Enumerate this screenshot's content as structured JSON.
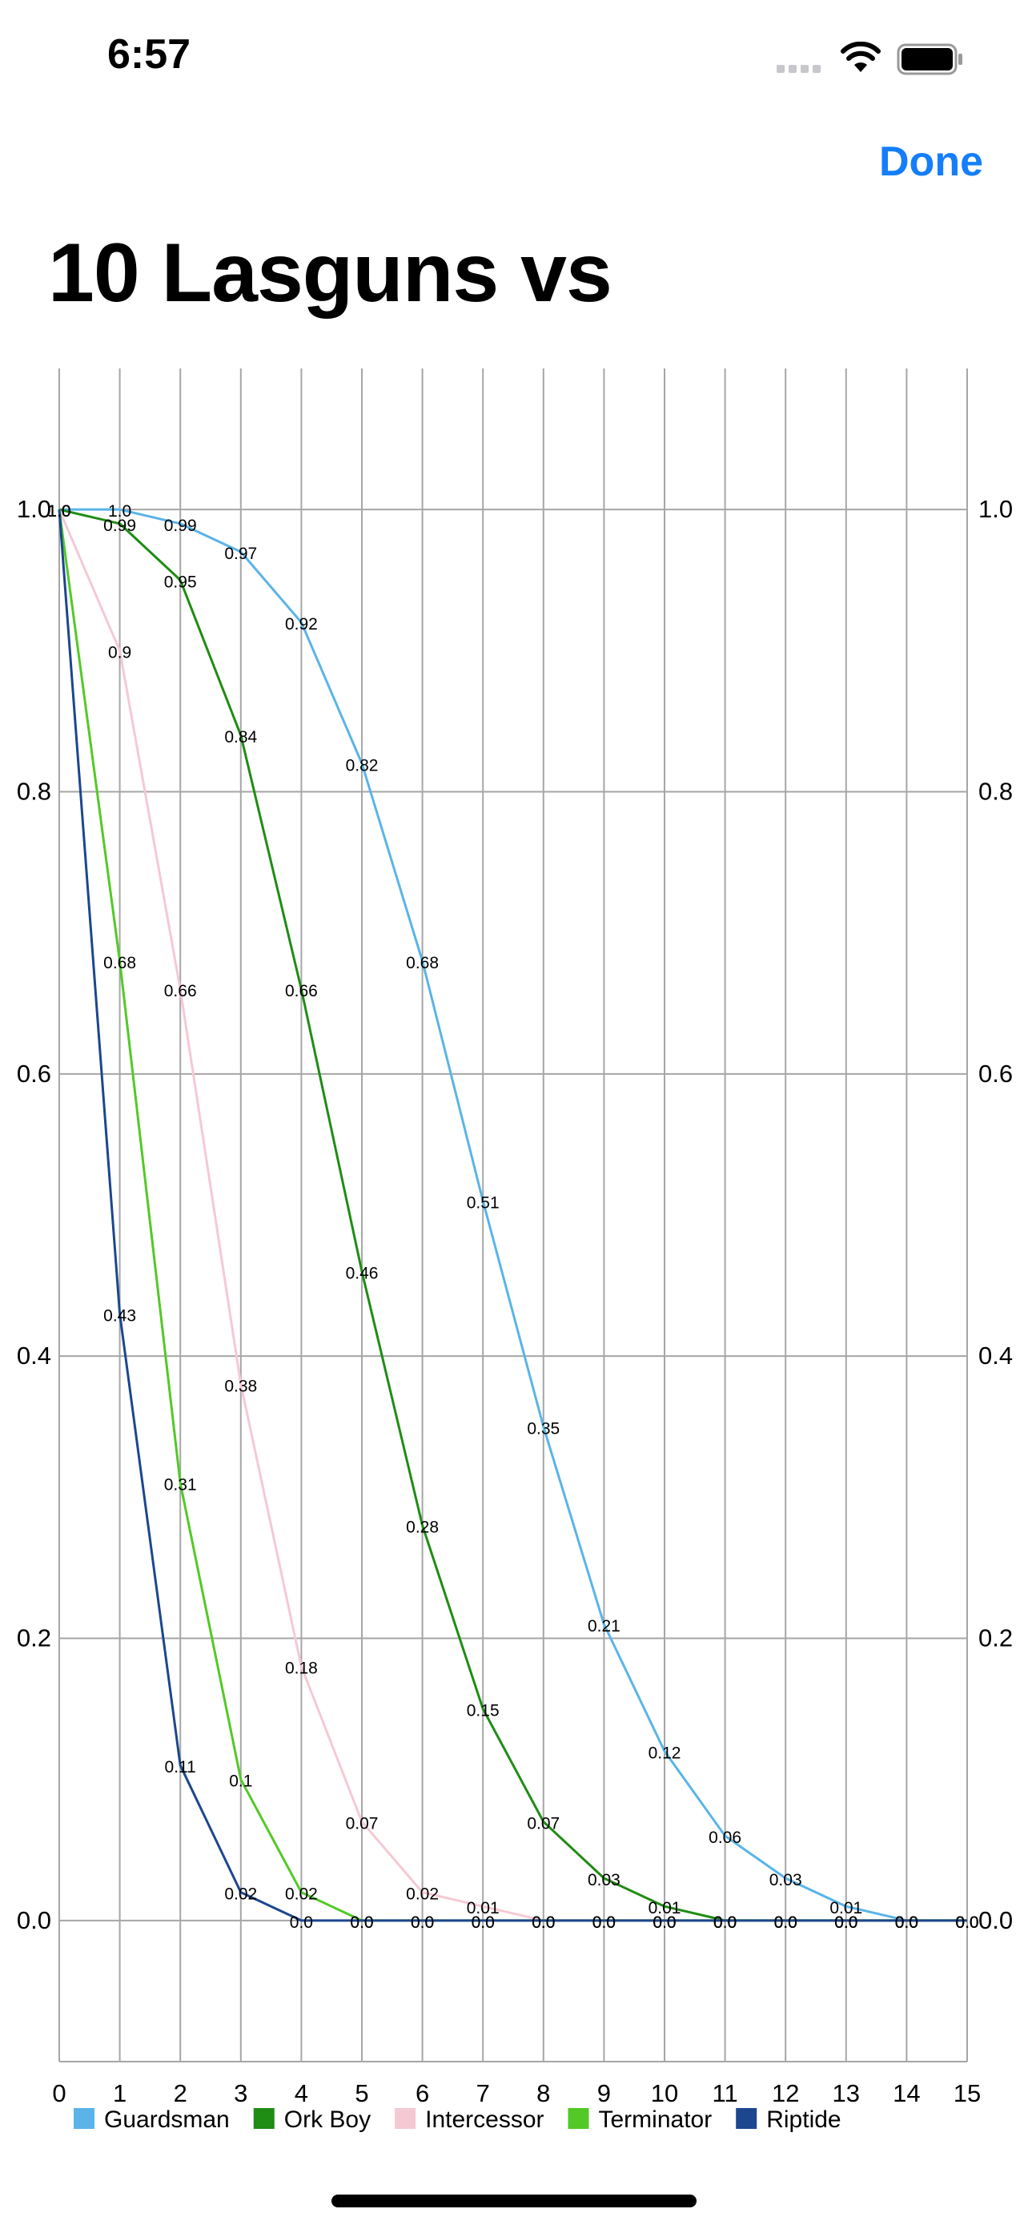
{
  "status_bar": {
    "time": "6:57"
  },
  "nav": {
    "done_label": "Done"
  },
  "page": {
    "title": "10 Lasguns vs"
  },
  "chart_data": {
    "type": "line",
    "title": "",
    "xlabel": "",
    "ylabel": "",
    "xlim": [
      0,
      15
    ],
    "ylim": [
      -0.1,
      1.1
    ],
    "x": [
      0,
      1,
      2,
      3,
      4,
      5,
      6,
      7,
      8,
      9,
      10,
      11,
      12,
      13,
      14,
      15
    ],
    "x_ticks": [
      "0",
      "1",
      "2",
      "3",
      "4",
      "5",
      "6",
      "7",
      "8",
      "9",
      "10",
      "11",
      "12",
      "13",
      "14",
      "15"
    ],
    "y_ticks": [
      "0.0",
      "0.2",
      "0.4",
      "0.6",
      "0.8",
      "1.0"
    ],
    "grid": true,
    "legend": "bottom",
    "series": [
      {
        "name": "Guardsman",
        "color": "#5ab4e8",
        "values": [
          1.0,
          1.0,
          0.99,
          0.97,
          0.92,
          0.82,
          0.68,
          0.51,
          0.35,
          0.21,
          0.12,
          0.06,
          0.03,
          0.01,
          0.0,
          0.0
        ],
        "labels": [
          "1.0",
          "1.0",
          "0.99",
          "0.97",
          "0.92",
          "0.82",
          "0.68",
          "0.51",
          "0.35",
          "0.21",
          "0.12",
          "0.06",
          "0.03",
          "0.01",
          "0.0",
          "0.0"
        ]
      },
      {
        "name": "Ork Boy",
        "color": "#1f8c14",
        "values": [
          1.0,
          0.99,
          0.95,
          0.84,
          0.66,
          0.46,
          0.28,
          0.15,
          0.07,
          0.03,
          0.01,
          0.0,
          0.0,
          0.0,
          0.0,
          0.0
        ],
        "labels": [
          "1.0",
          "0.99",
          "0.95",
          "0.84",
          "0.66",
          "0.46",
          "0.28",
          "0.15",
          "0.07",
          "0.03",
          "0.01",
          "0.0",
          "0.0",
          "0.0",
          "0.0",
          "0.0"
        ]
      },
      {
        "name": "Intercessor",
        "color": "#f5c9d3",
        "values": [
          1.0,
          0.9,
          0.66,
          0.38,
          0.18,
          0.07,
          0.02,
          0.01,
          0.0,
          0.0,
          0.0,
          0.0,
          0.0,
          0.0,
          0.0,
          0.0
        ],
        "labels": [
          "1.0",
          "0.9",
          "0.66",
          "0.38",
          "0.18",
          "0.07",
          "0.02",
          "0.01",
          "0.0",
          "0.0",
          "0.0",
          "0.0",
          "0.0",
          "0.0",
          "0.0",
          "0.0"
        ]
      },
      {
        "name": "Terminator",
        "color": "#52c926",
        "values": [
          1.0,
          0.68,
          0.31,
          0.1,
          0.02,
          0.0,
          0.0,
          0.0,
          0.0,
          0.0,
          0.0,
          0.0,
          0.0,
          0.0,
          0.0,
          0.0
        ],
        "labels": [
          "1.0",
          "0.68",
          "0.31",
          "0.1",
          "0.02",
          "0.0",
          "0.0",
          "0.0",
          "0.0",
          "0.0",
          "0.0",
          "0.0",
          "0.0",
          "0.0",
          "0.0",
          "0.0"
        ]
      },
      {
        "name": "Riptide",
        "color": "#1c468e",
        "values": [
          1.0,
          0.43,
          0.11,
          0.02,
          0.0,
          0.0,
          0.0,
          0.0,
          0.0,
          0.0,
          0.0,
          0.0,
          0.0,
          0.0,
          0.0,
          0.0
        ],
        "labels": [
          "1.0",
          "0.43",
          "0.11",
          "0.02",
          "0.0",
          "0.0",
          "0.0",
          "0.0",
          "0.0",
          "0.0",
          "0.0",
          "0.0",
          "0.0",
          "0.0",
          "0.0",
          "0.0"
        ]
      }
    ]
  }
}
